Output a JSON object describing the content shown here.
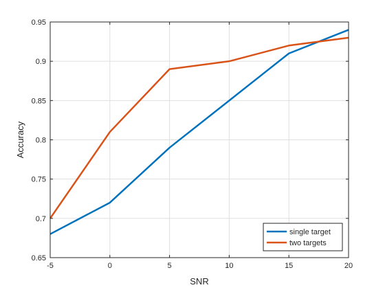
{
  "chart_data": {
    "type": "line",
    "title": "",
    "xlabel": "SNR",
    "ylabel": "Accuracy",
    "x": [
      -5,
      0,
      5,
      10,
      15,
      20
    ],
    "xlim": [
      -5,
      20
    ],
    "ylim": [
      0.65,
      0.95
    ],
    "xticks": [
      -5,
      0,
      5,
      10,
      15,
      20
    ],
    "yticks": [
      0.65,
      0.7,
      0.75,
      0.8,
      0.85,
      0.9,
      0.95
    ],
    "xtick_labels": [
      "-5",
      "0",
      "5",
      "10",
      "15",
      "20"
    ],
    "ytick_labels": [
      "0.65",
      "0.7",
      "0.75",
      "0.8",
      "0.85",
      "0.9",
      "0.95"
    ],
    "grid": true,
    "legend_position": "bottom-right",
    "series": [
      {
        "name": "single target",
        "color": "#0072BD",
        "values": [
          0.68,
          0.72,
          0.79,
          0.85,
          0.91,
          0.94
        ]
      },
      {
        "name": "two targets",
        "color": "#D95319",
        "values": [
          0.7,
          0.81,
          0.89,
          0.9,
          0.92,
          0.93
        ]
      }
    ]
  }
}
